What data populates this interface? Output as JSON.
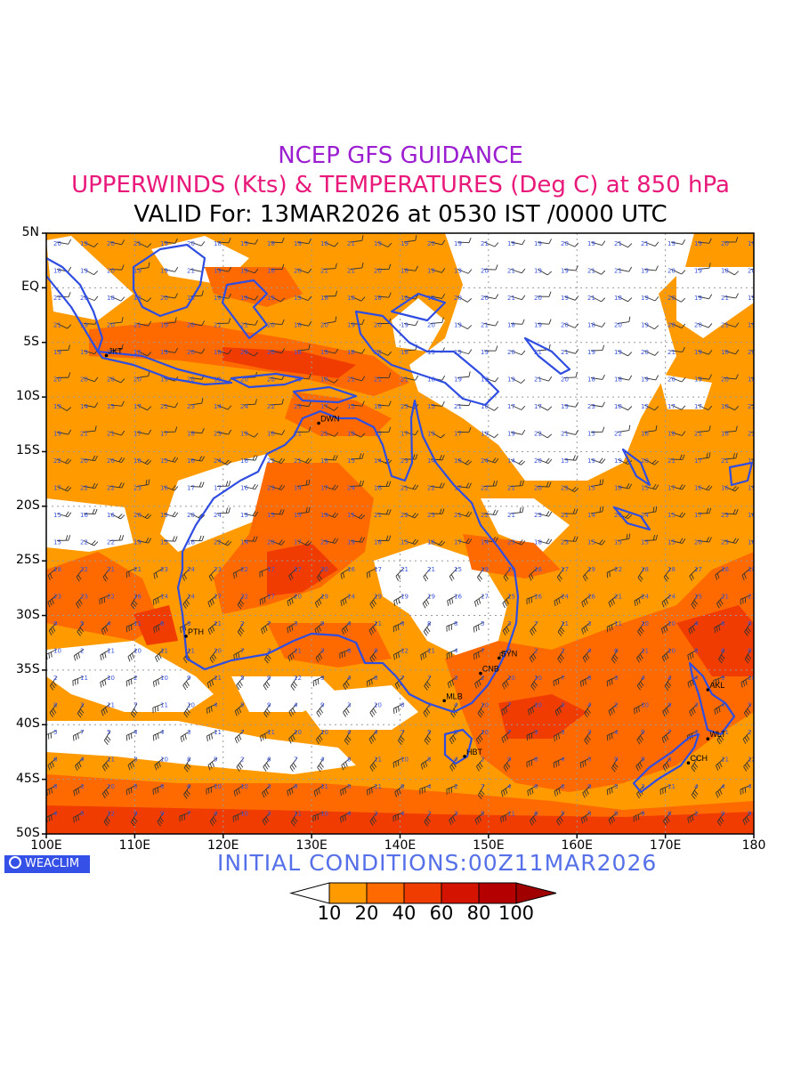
{
  "title": {
    "line1": "NCEP GFS GUIDANCE",
    "line2": "UPPERWINDS (Kts) & TEMPERATURES (Deg C) at 850 hPa",
    "line3": "VALID For: 13MAR2026 at 0530 IST /0000 UTC"
  },
  "map": {
    "lat_labels": [
      "5N",
      "EQ",
      "5S",
      "10S",
      "15S",
      "20S",
      "25S",
      "30S",
      "35S",
      "40S",
      "45S",
      "50S"
    ],
    "lon_labels": [
      "100E",
      "110E",
      "120E",
      "130E",
      "140E",
      "150E",
      "160E",
      "170E",
      "180"
    ],
    "lat_range": [
      5,
      -50
    ],
    "lon_range": [
      100,
      180
    ],
    "stations": [
      {
        "code": "JKT",
        "lon": 106.8,
        "lat": -6.2
      },
      {
        "code": "DWN",
        "lon": 130.8,
        "lat": -12.4
      },
      {
        "code": "PTH",
        "lon": 115.8,
        "lat": -31.9
      },
      {
        "code": "SYN",
        "lon": 151.2,
        "lat": -33.9
      },
      {
        "code": "CNB",
        "lon": 149.1,
        "lat": -35.3
      },
      {
        "code": "MLB",
        "lon": 145.0,
        "lat": -37.8
      },
      {
        "code": "HBT",
        "lon": 147.3,
        "lat": -42.9
      },
      {
        "code": "AKL",
        "lon": 174.8,
        "lat": -36.8
      },
      {
        "code": "WLT",
        "lon": 174.8,
        "lat": -41.3
      },
      {
        "code": "CCH",
        "lon": 172.6,
        "lat": -43.5
      }
    ]
  },
  "footer": {
    "logo": "WEACLIM",
    "initial_conditions": "INITIAL CONDITIONS:00Z11MAR2026"
  },
  "colorbar": {
    "labels": [
      "10",
      "20",
      "40",
      "60",
      "80",
      "100"
    ],
    "colors": [
      "#ffffff",
      "#ff9a00",
      "#ff6a00",
      "#f03c00",
      "#d41400",
      "#b50000",
      "#a00000"
    ]
  },
  "colors": {
    "coast": "#2f4de0",
    "grid": "#9a9a9a",
    "temp_label": "#3a55e0",
    "shade_1": "#ff9a00",
    "shade_2": "#ff6a00",
    "shade_3": "#f03c00"
  }
}
